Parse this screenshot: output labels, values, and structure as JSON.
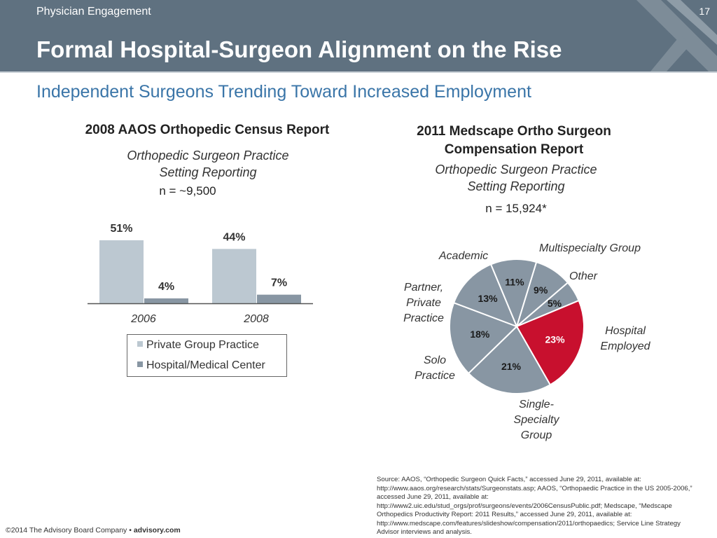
{
  "header": {
    "section": "Physician Engagement",
    "page_number": "17",
    "title": "Formal Hospital-Surgeon Alignment on the Rise",
    "logo_icon": "advisory-board-chevron-icon"
  },
  "subtitle": "Independent Surgeons Trending Toward Increased Employment",
  "left_chart": {
    "heading": "2008 AAOS Orthopedic Census Report",
    "subheading_line1": "Orthopedic Surgeon Practice",
    "subheading_line2": "Setting Reporting",
    "sample": "n = ~9,500"
  },
  "right_chart": {
    "heading_line1": "2011 Medscape Ortho Surgeon",
    "heading_line2": "Compensation Report",
    "subheading_line1": "Orthopedic Surgeon Practice",
    "subheading_line2": "Setting Reporting",
    "sample": "n = 15,924*",
    "labels": {
      "academic": "Academic",
      "multispecialty": "Multispecialty Group",
      "other": "Other",
      "hospital_1": "Hospital",
      "hospital_2": "Employed",
      "single_1": "Single-",
      "single_2": "Specialty",
      "single_3": "Group",
      "solo_1": "Solo",
      "solo_2": "Practice",
      "partner_1": "Partner,",
      "partner_2": "Private",
      "partner_3": "Practice"
    }
  },
  "chart_data": [
    {
      "type": "bar",
      "categories": [
        "2006",
        "2008"
      ],
      "series": [
        {
          "name": "Private Group Practice",
          "values": [
            51,
            44
          ],
          "labels": [
            "51%",
            "44%"
          ],
          "color": "#bcc8d1"
        },
        {
          "name": "Hospital/Medical Center",
          "values": [
            4,
            7
          ],
          "labels": [
            "4%",
            "7%"
          ],
          "color": "#8896a3"
        }
      ],
      "ylim": [
        0,
        51
      ],
      "legend_position": "bottom"
    },
    {
      "type": "pie",
      "slices": [
        {
          "name": "Multispecialty Group",
          "value": 9,
          "label": "9%",
          "color": "#8896a3"
        },
        {
          "name": "Other",
          "value": 5,
          "label": "5%",
          "color": "#8896a3"
        },
        {
          "name": "Hospital Employed",
          "value": 23,
          "label": "23%",
          "color": "#c8102e"
        },
        {
          "name": "Single-Specialty Group",
          "value": 21,
          "label": "21%",
          "color": "#8896a3"
        },
        {
          "name": "Solo Practice",
          "value": 18,
          "label": "18%",
          "color": "#8896a3"
        },
        {
          "name": "Partner, Private Practice",
          "value": 13,
          "label": "13%",
          "color": "#8896a3"
        },
        {
          "name": "Academic",
          "value": 11,
          "label": "11%",
          "color": "#8896a3"
        }
      ]
    }
  ],
  "source_lines": [
    "Source: AAOS, “Orthopedic Surgeon Quick Facts,” accessed June 29, 2011, available at:",
    "http://www.aaos.org/research/stats/Surgeonstats.asp; AAOS, “Orthopaedic Practice in the US 2005-2006,”",
    "accessed June 29, 2011, available at:",
    "http://www2.uic.edu/stud_orgs/prof/surgeons/events/2006CensusPublic.pdf; Medscape, “Medscape",
    "Orthopedics Productivity Report: 2011 Results,” accessed June 29, 2011, available at:",
    "http://www.medscape.com/features/slideshow/compensation/2011/orthopaedics;  Service Line Strategy",
    "Advisor interviews and analysis."
  ],
  "footer": {
    "copyright": "©2014 The Advisory Board Company • ",
    "site": "advisory.com"
  }
}
